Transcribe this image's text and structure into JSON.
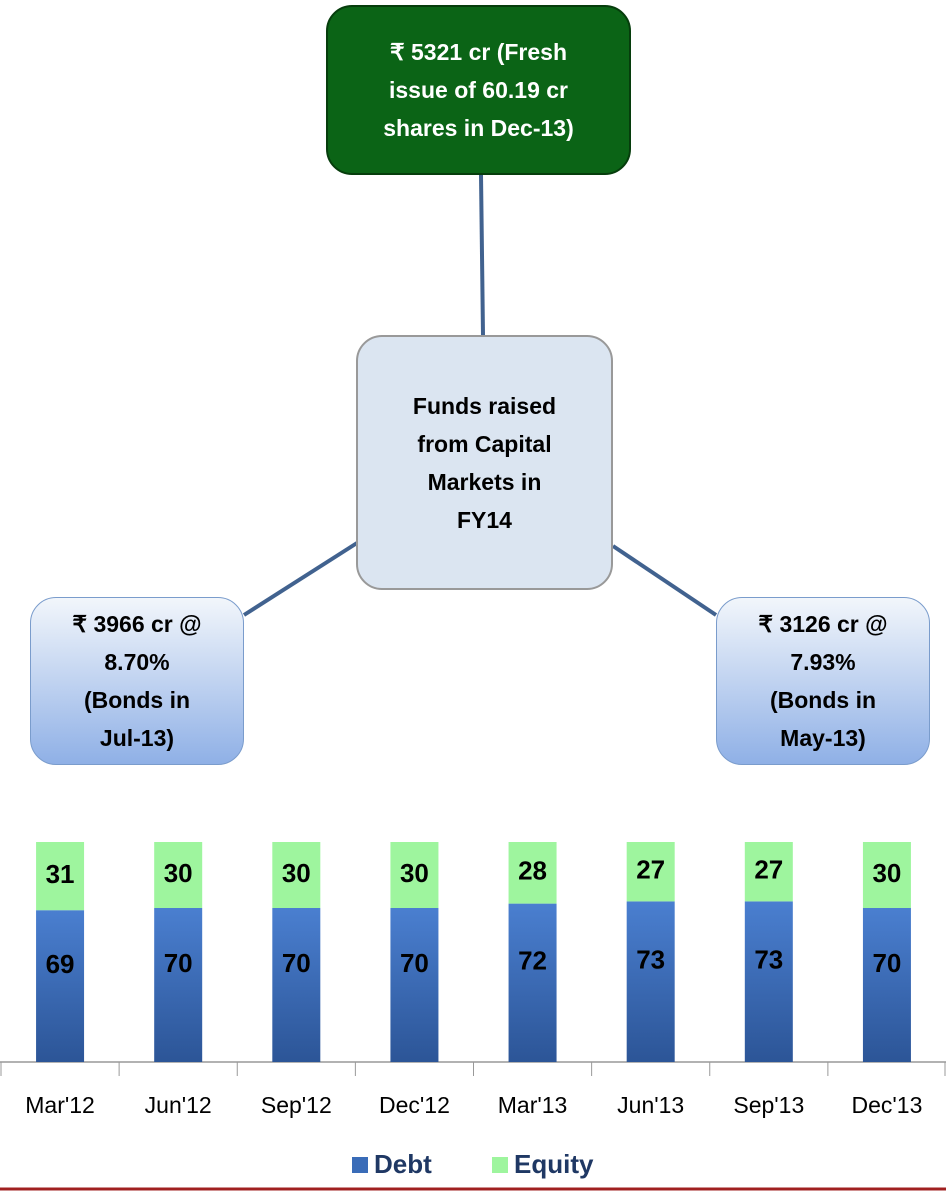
{
  "nodes": [
    {
      "lines": [
        "₹ 5321 cr (Fresh",
        "issue of 60.19 cr",
        "shares in Dec-13)"
      ]
    },
    {
      "lines": [
        "Funds raised",
        "from Capital",
        "Markets in",
        "FY14"
      ]
    },
    {
      "lines": [
        "₹ 3966 cr @",
        "8.70%",
        "(Bonds in",
        "Jul-13)"
      ]
    },
    {
      "lines": [
        "₹ 3126 cr @",
        "7.93%",
        "(Bonds in",
        "May-13)"
      ]
    }
  ],
  "chart_data": {
    "type": "stacked_bar",
    "categories": [
      "Mar'12",
      "Jun'12",
      "Sep'12",
      "Dec'12",
      "Mar'13",
      "Jun'13",
      "Sep'13",
      "Dec'13"
    ],
    "series": [
      {
        "name": "Debt",
        "color": "#3a6cb8",
        "values": [
          69,
          70,
          70,
          70,
          72,
          73,
          73,
          70
        ]
      },
      {
        "name": "Equity",
        "color": "#9ef59e",
        "values": [
          31,
          30,
          30,
          30,
          28,
          27,
          27,
          30
        ]
      }
    ],
    "ylim": [
      0,
      100
    ],
    "legend": "bottom"
  }
}
